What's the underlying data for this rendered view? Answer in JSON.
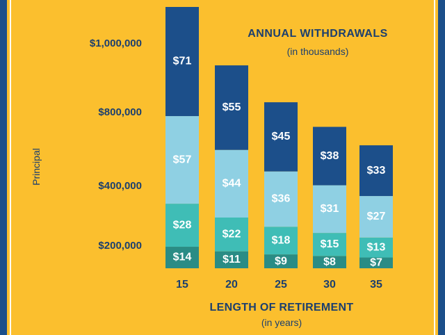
{
  "chart_data": {
    "type": "bar",
    "stacked": true,
    "title": "ANNUAL WITHDRAWALS",
    "subtitle": "(in thousands)",
    "xlabel": "LENGTH OF RETIREMENT",
    "xlabel_sub": "(in years)",
    "ylabel": "Principal",
    "categories": [
      "15",
      "20",
      "25",
      "30",
      "35"
    ],
    "y_tick_labels": [
      "$1,000,000",
      "$800,000",
      "$400,000",
      "$200,000"
    ],
    "series": [
      {
        "values": [
          14,
          11,
          9,
          8,
          7
        ],
        "labels": [
          "$14",
          "$11",
          "$9",
          "$8",
          "$7"
        ],
        "color": "#2a8c85"
      },
      {
        "values": [
          28,
          22,
          18,
          15,
          13
        ],
        "labels": [
          "$28",
          "$22",
          "$18",
          "$15",
          "$13"
        ],
        "color": "#3fbdb6"
      },
      {
        "values": [
          57,
          44,
          36,
          31,
          27
        ],
        "labels": [
          "$57",
          "$44",
          "$36",
          "$31",
          "$27"
        ],
        "color": "#8fd0e3"
      },
      {
        "values": [
          71,
          55,
          45,
          38,
          33
        ],
        "labels": [
          "$71",
          "$55",
          "$45",
          "$38",
          "$33"
        ],
        "color": "#1c4f8a"
      }
    ],
    "colors": {
      "background": "#fbbf2e",
      "text": "#1c3f6e",
      "frame": "#1c4f8a"
    }
  }
}
